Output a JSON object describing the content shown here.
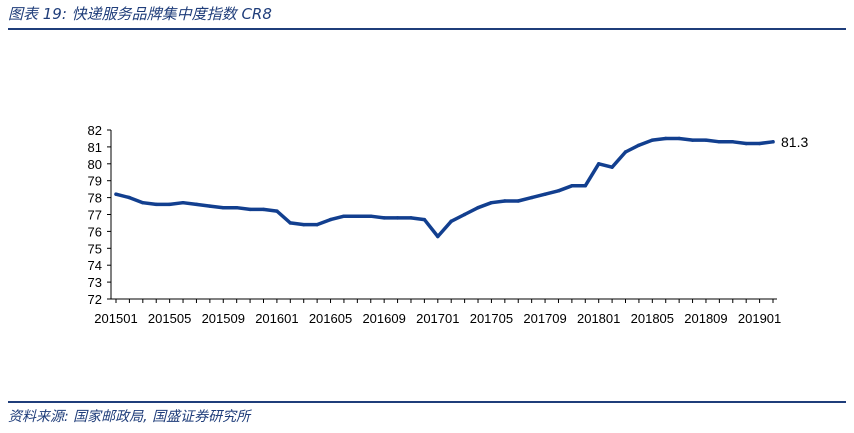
{
  "header": {
    "title": "图表 19:  快递服务品牌集中度指数 CR8"
  },
  "footer": {
    "source": "资料来源: 国家邮政局, 国盛证券研究所"
  },
  "colors": {
    "accent": "#1f3d7a",
    "line": "#123f8f"
  },
  "chart_data": {
    "type": "line",
    "title": "",
    "xlabel": "",
    "ylabel": "",
    "ylim": [
      72,
      82
    ],
    "yticks": [
      72,
      73,
      74,
      75,
      76,
      77,
      78,
      79,
      80,
      81,
      82
    ],
    "xtick_labels": [
      "201501",
      "201505",
      "201509",
      "201601",
      "201605",
      "201609",
      "201701",
      "201705",
      "201709",
      "201801",
      "201805",
      "201809",
      "201901"
    ],
    "x": [
      "201501",
      "201502",
      "201503",
      "201504",
      "201505",
      "201506",
      "201507",
      "201508",
      "201509",
      "201510",
      "201511",
      "201512",
      "201601",
      "201602",
      "201603",
      "201604",
      "201605",
      "201606",
      "201607",
      "201608",
      "201609",
      "201610",
      "201611",
      "201612",
      "201701",
      "201702",
      "201703",
      "201704",
      "201705",
      "201706",
      "201707",
      "201708",
      "201709",
      "201710",
      "201711",
      "201712",
      "201801",
      "201802",
      "201803",
      "201804",
      "201805",
      "201806",
      "201807",
      "201808",
      "201809",
      "201810",
      "201811",
      "201812",
      "201901",
      "201902"
    ],
    "series": [
      {
        "values": [
          78.2,
          78.0,
          77.7,
          77.6,
          77.6,
          77.7,
          77.6,
          77.5,
          77.4,
          77.4,
          77.3,
          77.3,
          77.2,
          76.5,
          76.4,
          76.4,
          76.7,
          76.9,
          76.9,
          76.9,
          76.8,
          76.8,
          76.8,
          76.7,
          75.7,
          76.6,
          77.0,
          77.4,
          77.7,
          77.8,
          77.8,
          78.0,
          78.2,
          78.4,
          78.7,
          78.7,
          80.0,
          79.8,
          80.7,
          81.1,
          81.4,
          81.5,
          81.5,
          81.4,
          81.4,
          81.3,
          81.3,
          81.2,
          81.2,
          81.3
        ]
      }
    ],
    "annotations": [
      {
        "text": "81.3"
      }
    ],
    "grid": false,
    "legend": "none"
  }
}
